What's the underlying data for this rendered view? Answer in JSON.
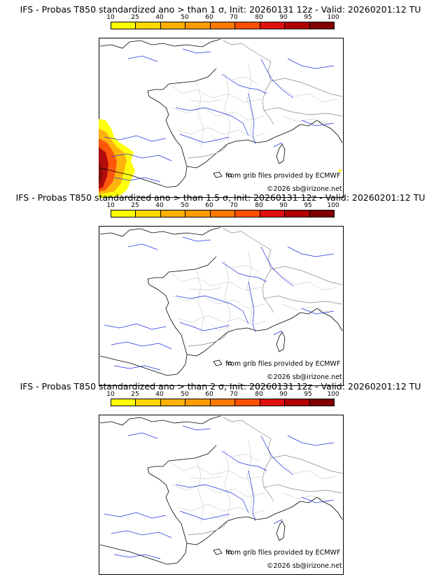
{
  "colorbar": {
    "ticks": [
      "10",
      "25",
      "40",
      "50",
      "60",
      "70",
      "80",
      "90",
      "95",
      "100"
    ],
    "colors": [
      "#ffff00",
      "#ffd700",
      "#ffb000",
      "#ff9a00",
      "#ff7a00",
      "#ff4f00",
      "#e01010",
      "#b00000",
      "#800000"
    ]
  },
  "panels": [
    {
      "title": "IFS - Probas T850  standardized ano > than 1 σ, Init: 20260131 12z - Valid: 20260201:12 TU",
      "credit_source": "from grib files provided by ECMWF",
      "credit_copyright": "©2026 sb@irizone.net",
      "has_probability_area": true
    },
    {
      "title": "IFS - Probas T850  standardized ano > than 1.5 σ, Init: 20260131 12z - Valid: 20260201:12 TU",
      "credit_source": "from grib files provided by ECMWF",
      "credit_copyright": "©2026 sb@irizone.net",
      "has_probability_area": false
    },
    {
      "title": "IFS - Probas T850  standardized ano > than 2 σ, Init: 20260131 12z - Valid: 20260201:12 TU",
      "credit_source": "from grib files provided by ECMWF",
      "credit_copyright": "©2026 sb@irizone.net",
      "has_probability_area": false
    }
  ]
}
